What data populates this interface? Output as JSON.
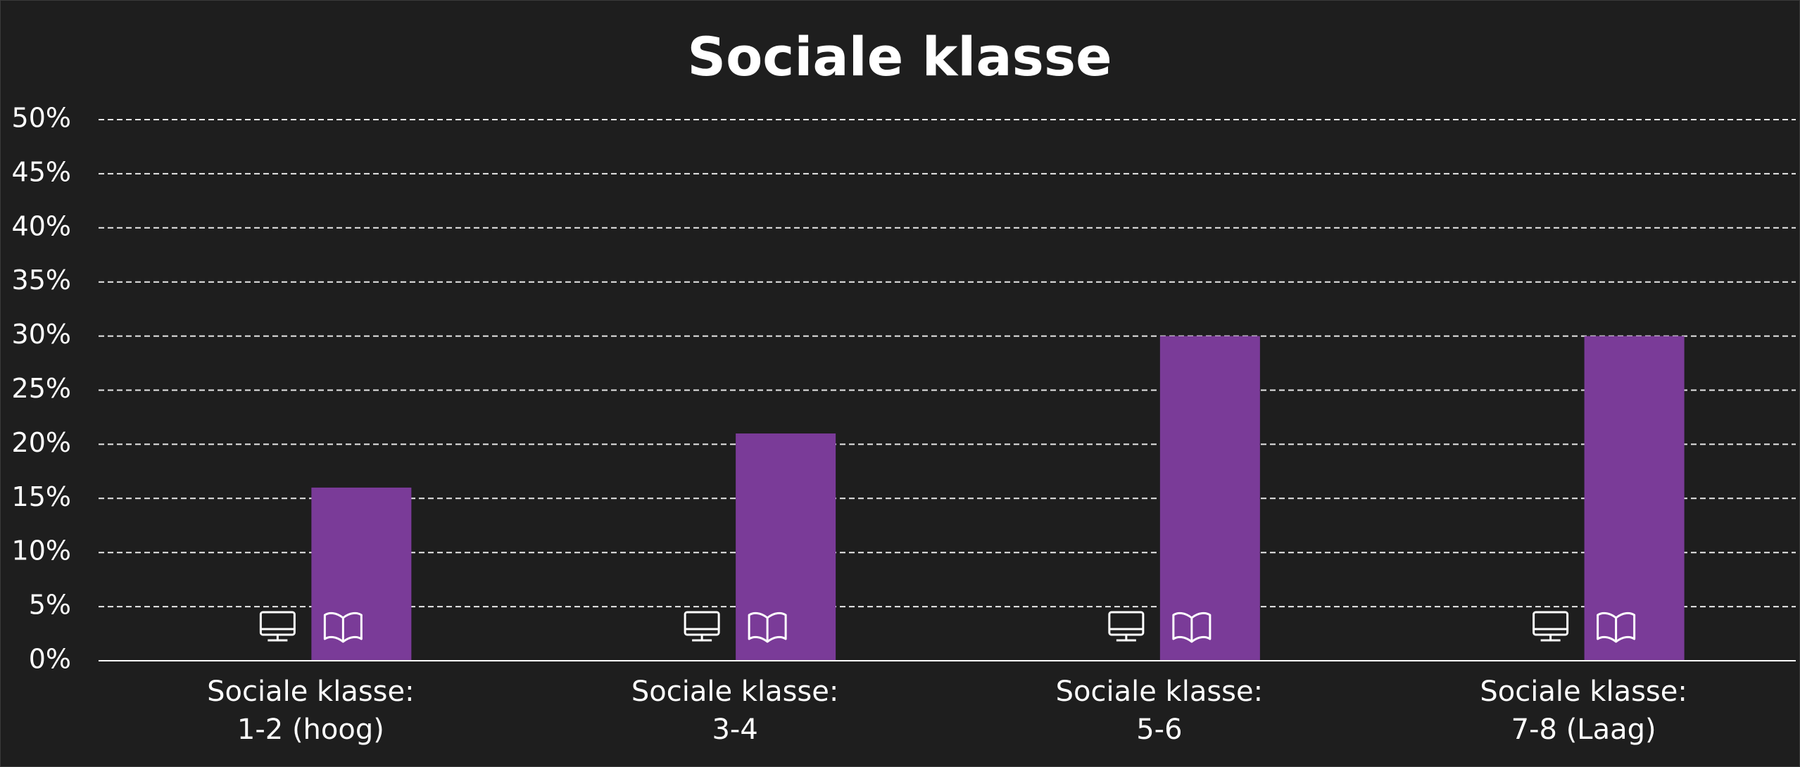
{
  "chart_data": {
    "type": "bar",
    "title": "Sociale klasse",
    "categories": [
      [
        "Sociale klasse:",
        "1-2 (hoog)"
      ],
      [
        "Sociale klasse:",
        "3-4"
      ],
      [
        "Sociale klasse:",
        "5-6"
      ],
      [
        "Sociale klasse:",
        "7-8 (Laag)"
      ]
    ],
    "values": [
      16,
      21,
      30,
      30
    ],
    "color": "#7a3b98",
    "ylim": [
      0,
      50
    ],
    "yticks": [
      {
        "value": 0,
        "label": "0%"
      },
      {
        "value": 5,
        "label": "5%"
      },
      {
        "value": 10,
        "label": "10%"
      },
      {
        "value": 15,
        "label": "15%"
      },
      {
        "value": 20,
        "label": "20%"
      },
      {
        "value": 25,
        "label": "25%"
      },
      {
        "value": 30,
        "label": "30%"
      },
      {
        "value": 35,
        "label": "35%"
      },
      {
        "value": 40,
        "label": "40%"
      },
      {
        "value": 45,
        "label": "45%"
      },
      {
        "value": 50,
        "label": "50%"
      }
    ],
    "grid": true
  }
}
